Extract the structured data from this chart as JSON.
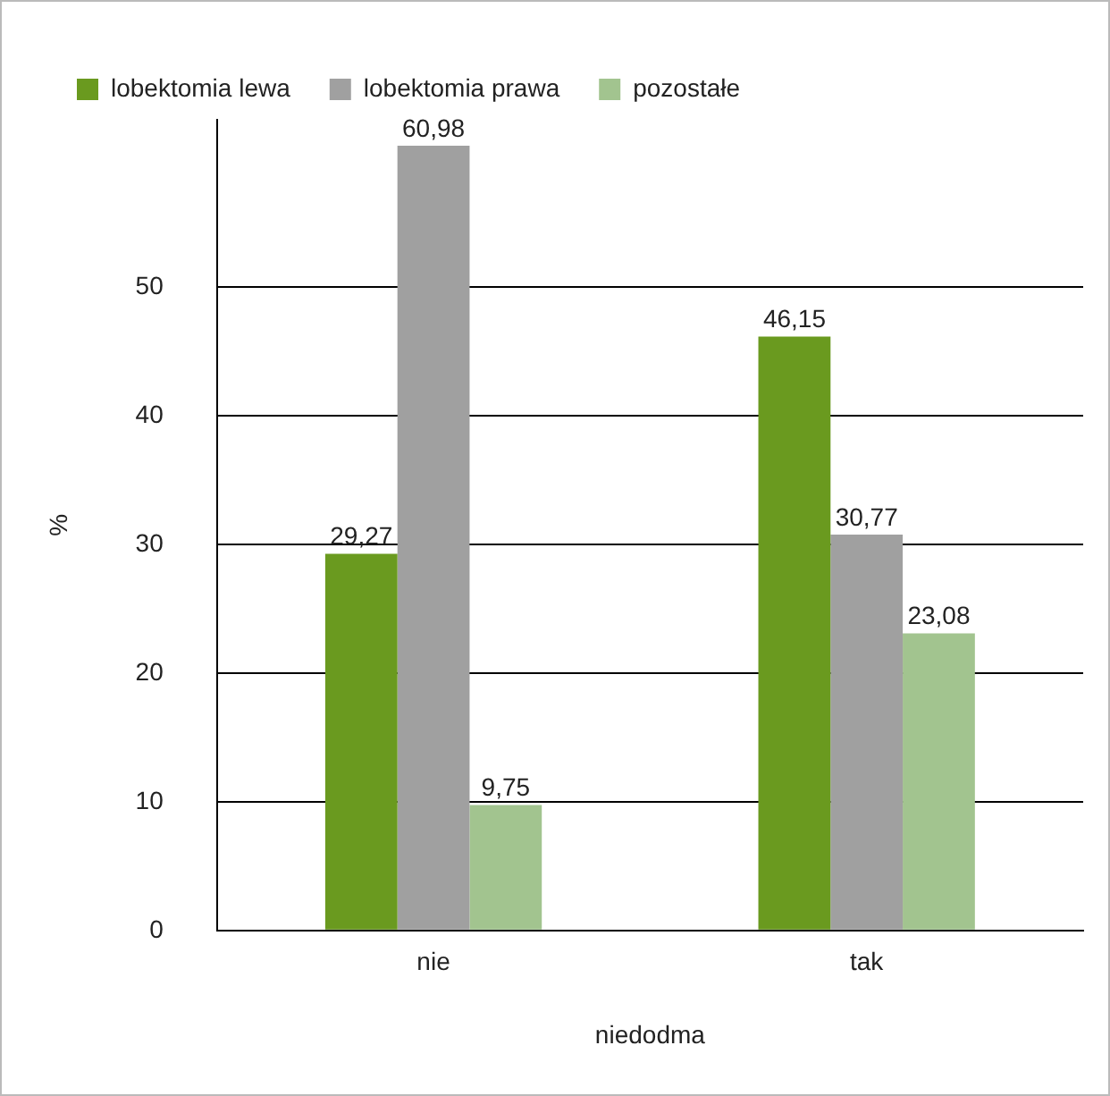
{
  "chart_data": {
    "type": "bar",
    "xlabel": "niedodma",
    "ylabel": "%",
    "categories": [
      "nie",
      "tak"
    ],
    "series": [
      {
        "name": "lobektomia lewa",
        "color": "#6a9a1f",
        "values": [
          29.27,
          46.15
        ],
        "value_labels": [
          "29,27",
          "46,15"
        ]
      },
      {
        "name": "lobektomia prawa",
        "color": "#a0a0a0",
        "values": [
          60.98,
          30.77
        ],
        "value_labels": [
          "60,98",
          "30,77"
        ]
      },
      {
        "name": "pozostałe",
        "color": "#a2c48f",
        "values": [
          9.75,
          23.08
        ],
        "value_labels": [
          "9,75",
          "23,08"
        ]
      }
    ],
    "ylim": [
      0,
      63
    ],
    "yticks": [
      0,
      10,
      20,
      30,
      40,
      50
    ],
    "grid": "y",
    "legend": "top left"
  }
}
